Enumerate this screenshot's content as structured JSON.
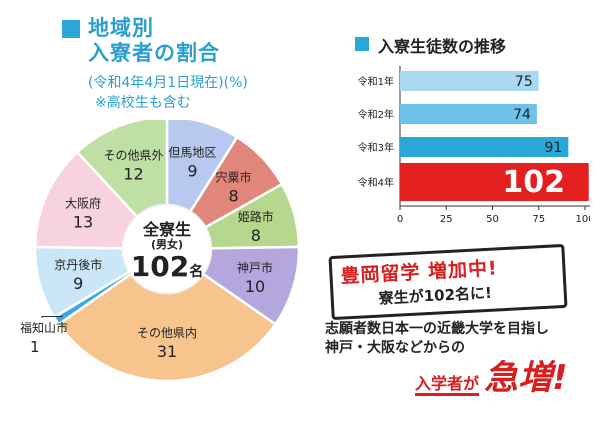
{
  "left": {
    "title_line1": "地域別",
    "title_line2": "入寮者の割合",
    "date_note": "(令和4年4月1日現在)(%)",
    "incl_note": "※高校生も含む"
  },
  "center": {
    "label": "全寮生",
    "sub": "(男女)",
    "count": "102",
    "unit": "名"
  },
  "right": {
    "bars_title": "入寮生徒数の推移"
  },
  "callout": {
    "headline": "豊岡留学 増加中!",
    "subline": "寮生が102名に!"
  },
  "body": {
    "line1": "志願者数日本一の近畿大学を目指し",
    "line2": "神戸・大阪などからの",
    "line3_a": "入学者が",
    "line3_b": "急増!"
  },
  "chart_data": [
    {
      "type": "pie",
      "title": "地域別 入寮者の割合",
      "unit": "%",
      "slices": [
        {
          "name": "但馬地区",
          "value": 9,
          "color": "#b7c9ee"
        },
        {
          "name": "宍粟市",
          "value": 8,
          "color": "#e0867a"
        },
        {
          "name": "姫路市",
          "value": 8,
          "color": "#b6d88e"
        },
        {
          "name": "神戸市",
          "value": 10,
          "color": "#b3a7dd"
        },
        {
          "name": "その他県内",
          "value": 31,
          "color": "#f7c48e"
        },
        {
          "name": "福知山市",
          "value": 1,
          "color": "#3aa9e0"
        },
        {
          "name": "京丹後市",
          "value": 9,
          "color": "#cbe7f7"
        },
        {
          "name": "大阪府",
          "value": 13,
          "color": "#f7d3df"
        },
        {
          "name": "その他県外",
          "value": 12,
          "color": "#bfe0a4"
        }
      ]
    },
    {
      "type": "bar",
      "orientation": "horizontal",
      "title": "入寮生徒数の推移",
      "categories": [
        "令和1年",
        "令和2年",
        "令和3年",
        "令和4年"
      ],
      "values": [
        75,
        74,
        91,
        102
      ],
      "colors": [
        "#a9d9f2",
        "#6cc3ea",
        "#2aa7d6",
        "#e41f1f"
      ],
      "xticks": [
        0,
        25,
        50,
        75,
        100
      ],
      "xlim": [
        0,
        110
      ],
      "grid": false
    }
  ]
}
